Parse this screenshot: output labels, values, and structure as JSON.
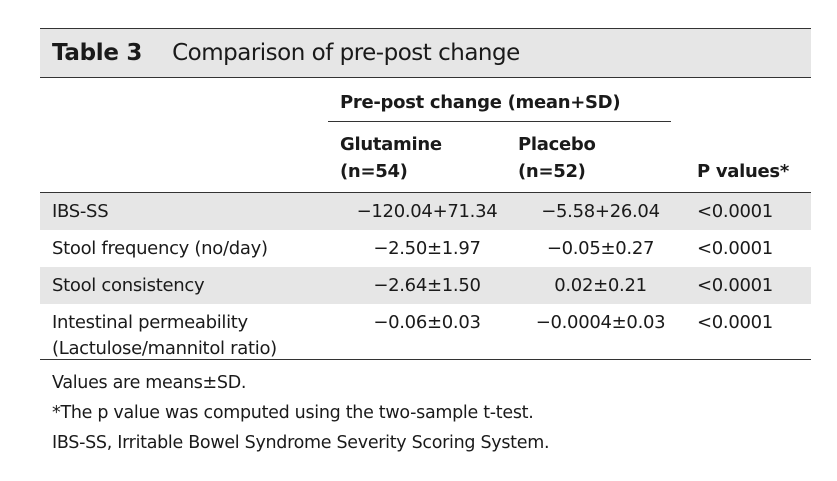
{
  "table": {
    "number": "Table 3",
    "title": "Comparison of pre-post change",
    "group_header": "Pre-post change (mean+SD)",
    "columns": {
      "glutamine": [
        "Glutamine",
        "(n=54)"
      ],
      "placebo": [
        "Placebo",
        "(n=52)"
      ],
      "p_values": "P values*"
    },
    "rows": [
      {
        "label": [
          "IBS-SS"
        ],
        "glutamine": "−120.04+71.34",
        "placebo": "−5.58+26.04",
        "p": "<0.0001"
      },
      {
        "label": [
          "Stool frequency (no/day)"
        ],
        "glutamine": "−2.50±1.97",
        "placebo": "−0.05±0.27",
        "p": "<0.0001"
      },
      {
        "label": [
          "Stool consistency"
        ],
        "glutamine": "−2.64±1.50",
        "placebo": "0.02±0.21",
        "p": "<0.0001"
      },
      {
        "label": [
          "Intestinal permeability",
          "(Lactulose/mannitol ratio)"
        ],
        "glutamine": "−0.06±0.03",
        "placebo": "−0.0004±0.03",
        "p": "<0.0001"
      }
    ],
    "footnotes": [
      "Values are means±SD.",
      "*The p value was computed using the two-sample t-test.",
      "IBS-SS, Irritable Bowel Syndrome Severity Scoring System."
    ]
  }
}
